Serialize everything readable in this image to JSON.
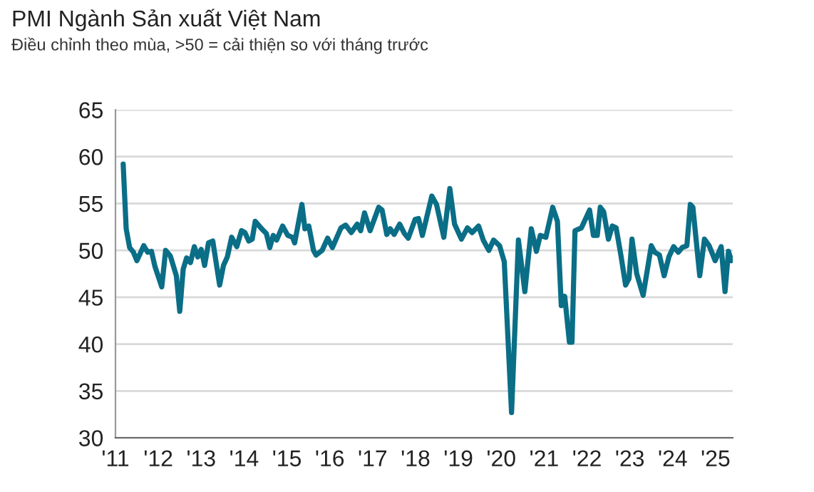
{
  "chart_data": {
    "type": "line",
    "title": "PMI Ngành Sản xuất Việt Nam",
    "subtitle": "Điều chỉnh theo mùa, >50 = cải thiện so với tháng trước",
    "x": [
      2011.18,
      2011.25,
      2011.33,
      2011.42,
      2011.5,
      2011.66,
      2011.75,
      2011.84,
      2011.92,
      2012.08,
      2012.17,
      2012.28,
      2012.42,
      2012.5,
      2012.58,
      2012.66,
      2012.75,
      2012.84,
      2012.92,
      2013.0,
      2013.08,
      2013.17,
      2013.27,
      2013.43,
      2013.52,
      2013.61,
      2013.71,
      2013.83,
      2013.94,
      2014.02,
      2014.11,
      2014.19,
      2014.26,
      2014.41,
      2014.52,
      2014.6,
      2014.68,
      2014.76,
      2014.9,
      2015.02,
      2015.13,
      2015.18,
      2015.35,
      2015.42,
      2015.51,
      2015.62,
      2015.68,
      2015.82,
      2015.95,
      2016.06,
      2016.26,
      2016.37,
      2016.5,
      2016.64,
      2016.72,
      2016.81,
      2016.94,
      2017.14,
      2017.22,
      2017.33,
      2017.41,
      2017.5,
      2017.63,
      2017.74,
      2017.83,
      2017.99,
      2018.07,
      2018.16,
      2018.38,
      2018.49,
      2018.66,
      2018.8,
      2018.91,
      2019.07,
      2019.21,
      2019.32,
      2019.47,
      2019.58,
      2019.71,
      2019.82,
      2019.96,
      2020.07,
      2020.24,
      2020.4,
      2020.55,
      2020.7,
      2020.82,
      2020.91,
      2021.04,
      2021.2,
      2021.31,
      2021.4,
      2021.48,
      2021.59,
      2021.65,
      2021.72,
      2021.87,
      2022.06,
      2022.15,
      2022.24,
      2022.31,
      2022.39,
      2022.5,
      2022.59,
      2022.68,
      2022.79,
      2022.9,
      2022.98,
      2023.05,
      2023.16,
      2023.31,
      2023.5,
      2023.58,
      2023.69,
      2023.8,
      2023.91,
      2024.02,
      2024.13,
      2024.22,
      2024.33,
      2024.41,
      2024.47,
      2024.63,
      2024.74,
      2024.85,
      2024.99,
      2025.13,
      2025.22,
      2025.3,
      2025.37
    ],
    "series": [
      {
        "color": "#0b6e87",
        "values": [
          59.2,
          52.3,
          50.3,
          49.8,
          48.9,
          50.5,
          49.8,
          49.9,
          48.3,
          46.1,
          50.0,
          49.4,
          47.3,
          43.5,
          48.0,
          49.2,
          48.7,
          50.4,
          49.3,
          50.1,
          48.4,
          50.8,
          51.0,
          46.3,
          48.4,
          49.3,
          51.4,
          50.4,
          52.1,
          51.9,
          51.0,
          51.2,
          53.1,
          52.3,
          51.8,
          50.3,
          51.6,
          51.1,
          52.6,
          51.6,
          51.4,
          50.8,
          54.9,
          52.3,
          52.6,
          50.0,
          49.5,
          50.0,
          51.3,
          50.3,
          52.4,
          52.7,
          51.9,
          52.8,
          52.1,
          54.0,
          52.1,
          54.6,
          54.3,
          51.7,
          52.3,
          51.7,
          52.8,
          51.8,
          51.3,
          53.3,
          53.4,
          51.6,
          55.8,
          54.9,
          51.4,
          56.6,
          52.8,
          51.2,
          52.4,
          51.9,
          52.6,
          51.1,
          50.0,
          51.1,
          50.5,
          48.8,
          32.7,
          51.1,
          45.6,
          52.3,
          49.9,
          51.6,
          51.4,
          54.6,
          53.1,
          44.1,
          45.1,
          40.2,
          40.2,
          52.1,
          52.4,
          54.3,
          51.6,
          51.6,
          54.6,
          54.1,
          51.2,
          52.6,
          52.4,
          49.5,
          46.3,
          47.0,
          51.2,
          47.5,
          45.2,
          50.5,
          49.8,
          49.5,
          47.3,
          49.3,
          50.4,
          49.8,
          50.3,
          50.5,
          54.9,
          54.6,
          47.3,
          51.2,
          50.5,
          48.9,
          50.4,
          45.6,
          49.9,
          48.9
        ]
      }
    ],
    "xlim": [
      2011,
      2025.4
    ],
    "xticks": [
      {
        "value": 2011,
        "label": "'11"
      },
      {
        "value": 2012,
        "label": "'12"
      },
      {
        "value": 2013,
        "label": "'13"
      },
      {
        "value": 2014,
        "label": "'14"
      },
      {
        "value": 2015,
        "label": "'15"
      },
      {
        "value": 2016,
        "label": "'16"
      },
      {
        "value": 2017,
        "label": "'17"
      },
      {
        "value": 2018,
        "label": "'18"
      },
      {
        "value": 2019,
        "label": "'19"
      },
      {
        "value": 2020,
        "label": "'20"
      },
      {
        "value": 2021,
        "label": "'21"
      },
      {
        "value": 2022,
        "label": "'22"
      },
      {
        "value": 2023,
        "label": "'23"
      },
      {
        "value": 2024,
        "label": "'24"
      },
      {
        "value": 2025,
        "label": "'25"
      }
    ],
    "ylim": [
      30,
      65
    ],
    "yticks": [
      30,
      35,
      40,
      45,
      50,
      55,
      60,
      65
    ],
    "grid": "y",
    "legend": false,
    "marker": "none",
    "line_style": "solid"
  }
}
